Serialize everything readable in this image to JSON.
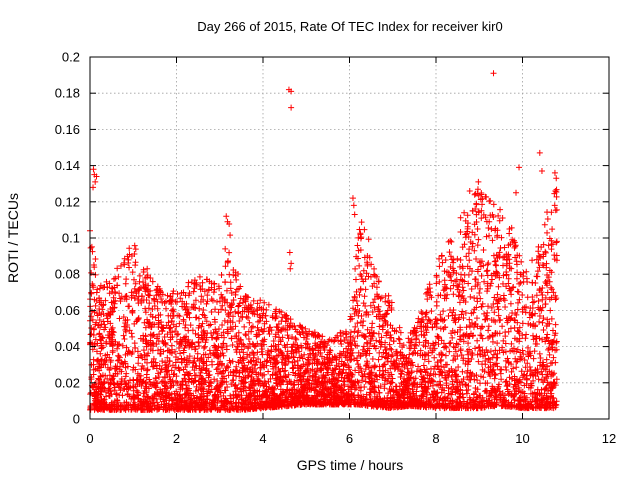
{
  "chart_data": {
    "type": "scatter",
    "title": "Day 266 of 2015, Rate Of TEC Index for receiver kir0",
    "xlabel": "GPS time / hours",
    "ylabel": "ROTI / TECUs",
    "xlim": [
      0,
      12
    ],
    "ylim": [
      0,
      0.2
    ],
    "x_ticks": [
      "0",
      "2",
      "4",
      "6",
      "8",
      "10",
      "12"
    ],
    "y_ticks": [
      "0",
      "0.02",
      "0.04",
      "0.06",
      "0.08",
      "0.1",
      "0.12",
      "0.14",
      "0.16",
      "0.18",
      "0.2"
    ],
    "grid": true,
    "marker": "plus",
    "color": "#ff0000",
    "x_data_range": [
      0,
      10.8
    ],
    "envelope": {
      "x": [
        0.0,
        0.1,
        0.2,
        0.5,
        1.0,
        1.5,
        2.0,
        2.5,
        3.0,
        3.2,
        3.5,
        4.0,
        4.5,
        5.0,
        5.5,
        6.0,
        6.2,
        6.5,
        7.0,
        7.3,
        7.5,
        8.0,
        8.5,
        9.0,
        9.3,
        9.6,
        10.0,
        10.3,
        10.5,
        10.8
      ],
      "upper": [
        0.1,
        0.095,
        0.075,
        0.08,
        0.1,
        0.075,
        0.07,
        0.08,
        0.075,
        0.11,
        0.07,
        0.065,
        0.06,
        0.05,
        0.045,
        0.05,
        0.12,
        0.095,
        0.065,
        0.04,
        0.055,
        0.085,
        0.11,
        0.13,
        0.12,
        0.12,
        0.085,
        0.09,
        0.11,
        0.13
      ],
      "lower": [
        0.005,
        0.005,
        0.005,
        0.005,
        0.005,
        0.005,
        0.005,
        0.005,
        0.005,
        0.005,
        0.005,
        0.006,
        0.007,
        0.008,
        0.008,
        0.008,
        0.008,
        0.007,
        0.006,
        0.007,
        0.007,
        0.006,
        0.006,
        0.006,
        0.007,
        0.007,
        0.006,
        0.006,
        0.006,
        0.006
      ]
    },
    "outliers": [
      {
        "x": 0.08,
        "y": 0.138
      },
      {
        "x": 0.1,
        "y": 0.135
      },
      {
        "x": 0.12,
        "y": 0.131
      },
      {
        "x": 0.07,
        "y": 0.128
      },
      {
        "x": 0.15,
        "y": 0.134
      },
      {
        "x": 0.0,
        "y": 0.104
      },
      {
        "x": 3.15,
        "y": 0.112
      },
      {
        "x": 3.18,
        "y": 0.109
      },
      {
        "x": 4.6,
        "y": 0.182
      },
      {
        "x": 4.65,
        "y": 0.181
      },
      {
        "x": 4.65,
        "y": 0.172
      },
      {
        "x": 4.62,
        "y": 0.092
      },
      {
        "x": 4.65,
        "y": 0.086
      },
      {
        "x": 4.63,
        "y": 0.083
      },
      {
        "x": 6.08,
        "y": 0.122
      },
      {
        "x": 6.1,
        "y": 0.118
      },
      {
        "x": 6.12,
        "y": 0.113
      },
      {
        "x": 9.33,
        "y": 0.191
      },
      {
        "x": 9.92,
        "y": 0.139
      },
      {
        "x": 10.4,
        "y": 0.147
      },
      {
        "x": 10.45,
        "y": 0.137
      },
      {
        "x": 8.98,
        "y": 0.131
      },
      {
        "x": 9.05,
        "y": 0.124
      },
      {
        "x": 10.75,
        "y": 0.136
      },
      {
        "x": 10.78,
        "y": 0.133
      },
      {
        "x": 10.76,
        "y": 0.126
      },
      {
        "x": 8.78,
        "y": 0.126
      },
      {
        "x": 9.85,
        "y": 0.125
      }
    ]
  }
}
